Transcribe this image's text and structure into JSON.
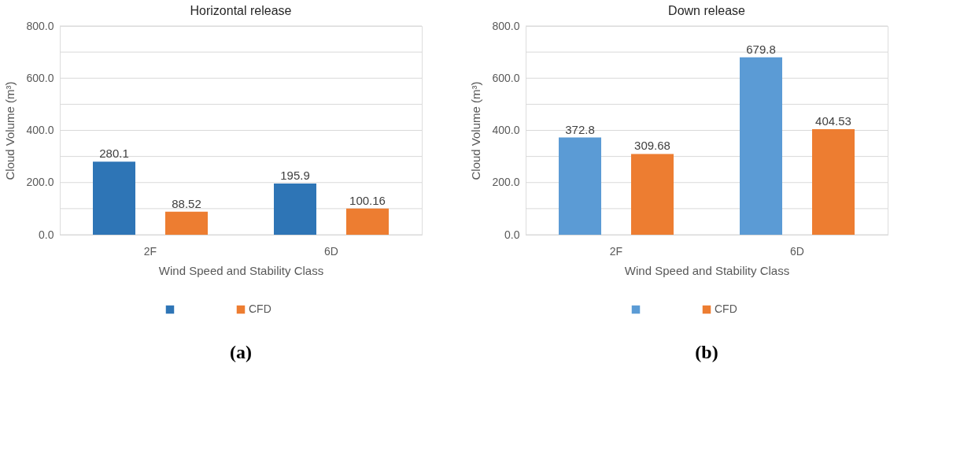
{
  "chart_data": [
    {
      "type": "bar",
      "title": "Horizontal release",
      "xlabel": "Wind Speed and Stability Class",
      "ylabel": "Cloud Volume (m³)",
      "categories": [
        "2F",
        "6D"
      ],
      "series": [
        {
          "color": "#2e75b6",
          "values": [
            280.1,
            195.9
          ]
        },
        {
          "name": "CFD",
          "color": "#ed7d31",
          "values": [
            88.52,
            100.16
          ]
        }
      ],
      "ylim": [
        0,
        800
      ],
      "yticks": [
        {
          "value": 0,
          "label": "0.0"
        },
        {
          "value": 100,
          "label": null
        },
        {
          "value": 200,
          "label": "200.0"
        },
        {
          "value": 300,
          "label": null
        },
        {
          "value": 400,
          "label": "400.0"
        },
        {
          "value": 500,
          "label": null
        },
        {
          "value": 600,
          "label": "600.0"
        },
        {
          "value": 700,
          "label": null
        },
        {
          "value": 800,
          "label": "800.0"
        }
      ],
      "grid": "y",
      "legend": "bottom",
      "data_labels": true,
      "annotations": [
        "(a)"
      ]
    },
    {
      "type": "bar",
      "title": "Down release",
      "xlabel": "Wind Speed and Stability Class",
      "ylabel": "Cloud Volume (m³)",
      "categories": [
        "2F",
        "6D"
      ],
      "series": [
        {
          "color": "#5b9bd5",
          "values": [
            372.8,
            679.8
          ]
        },
        {
          "name": "CFD",
          "color": "#ed7d31",
          "values": [
            309.68,
            404.53
          ]
        }
      ],
      "ylim": [
        0,
        800
      ],
      "yticks": [
        {
          "value": 0,
          "label": "0.0"
        },
        {
          "value": 100,
          "label": null
        },
        {
          "value": 200,
          "label": "200.0"
        },
        {
          "value": 300,
          "label": null
        },
        {
          "value": 400,
          "label": "400.0"
        },
        {
          "value": 500,
          "label": null
        },
        {
          "value": 600,
          "label": "600.0"
        },
        {
          "value": 700,
          "label": null
        },
        {
          "value": 800,
          "label": "800.0"
        }
      ],
      "grid": "y",
      "legend": "bottom",
      "data_labels": true,
      "annotations": [
        "(b)"
      ]
    }
  ]
}
